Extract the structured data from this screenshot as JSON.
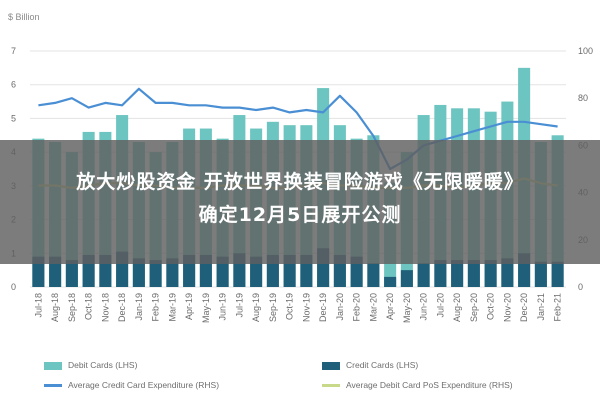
{
  "chart_data": {
    "type": "bar",
    "unit_label": "$ Billion",
    "categories": [
      "Jul-18",
      "Aug-18",
      "Sep-18",
      "Oct-18",
      "Nov-18",
      "Dec-18",
      "Jan-19",
      "Feb-19",
      "Mar-19",
      "Apr-19",
      "May-19",
      "Jun-19",
      "Jul-19",
      "Aug-19",
      "Sep-19",
      "Oct-19",
      "Nov-19",
      "Dec-19",
      "Jan-20",
      "Feb-20",
      "Mar-20",
      "Apr-20",
      "May-20",
      "Jun-20",
      "Jul-20",
      "Aug-20",
      "Sep-20",
      "Oct-20",
      "Nov-20",
      "Dec-20",
      "Jan-21",
      "Feb-21"
    ],
    "y_left": {
      "ylim": [
        0,
        7
      ],
      "ticks": [
        0,
        1,
        2,
        3,
        4,
        5,
        6,
        7
      ]
    },
    "y_right": {
      "ylim": [
        0,
        100
      ],
      "ticks": [
        0,
        20,
        40,
        60,
        80,
        100
      ]
    },
    "series": [
      {
        "name": "Debit Cards (LHS)",
        "kind": "bar",
        "axis": "left",
        "color": "#6cc5c0",
        "values": [
          4.4,
          4.3,
          4.0,
          4.6,
          4.6,
          5.1,
          4.3,
          4.0,
          4.3,
          4.7,
          4.7,
          4.4,
          5.1,
          4.7,
          4.9,
          4.8,
          4.8,
          5.9,
          4.8,
          4.4,
          4.5,
          3.1,
          4.0,
          5.1,
          5.4,
          5.3,
          5.3,
          5.2,
          5.5,
          6.5,
          4.3,
          4.5
        ]
      },
      {
        "name": "Credit Cards (LHS)",
        "kind": "bar",
        "axis": "left",
        "color": "#1f5f7a",
        "values": [
          0.9,
          0.9,
          0.8,
          0.95,
          0.95,
          1.05,
          0.85,
          0.8,
          0.85,
          0.95,
          0.95,
          0.9,
          1.0,
          0.9,
          0.95,
          0.95,
          0.95,
          1.15,
          0.95,
          0.9,
          0.7,
          0.3,
          0.5,
          0.7,
          0.8,
          0.8,
          0.8,
          0.8,
          0.85,
          1.0,
          0.75,
          0.75
        ]
      },
      {
        "name": "Average Credit Card Expenditure (RHS)",
        "kind": "line",
        "axis": "right",
        "color": "#4a8fd4",
        "values": [
          77,
          78,
          80,
          76,
          78,
          77,
          84,
          78,
          78,
          77,
          77,
          76,
          76,
          75,
          76,
          74,
          75,
          74,
          81,
          74,
          64,
          50,
          54,
          60,
          62,
          64,
          66,
          68,
          70,
          70,
          69,
          68
        ]
      },
      {
        "name": "Average Debit Card PoS Expenditure (RHS)",
        "kind": "line",
        "axis": "right",
        "color": "#c8d98a",
        "values": [
          43,
          43,
          42,
          43,
          44,
          44,
          43,
          43,
          42,
          42,
          42,
          43,
          43,
          43,
          42,
          42,
          43,
          44,
          43,
          43,
          42,
          42,
          42,
          43,
          43,
          42,
          43,
          44,
          44,
          46,
          44,
          43
        ]
      }
    ]
  },
  "headline": {
    "line1": "放大炒股资金 开放世界换装冒险游戏《无限暖暖》",
    "line2": "确定12月5日展开公测"
  }
}
